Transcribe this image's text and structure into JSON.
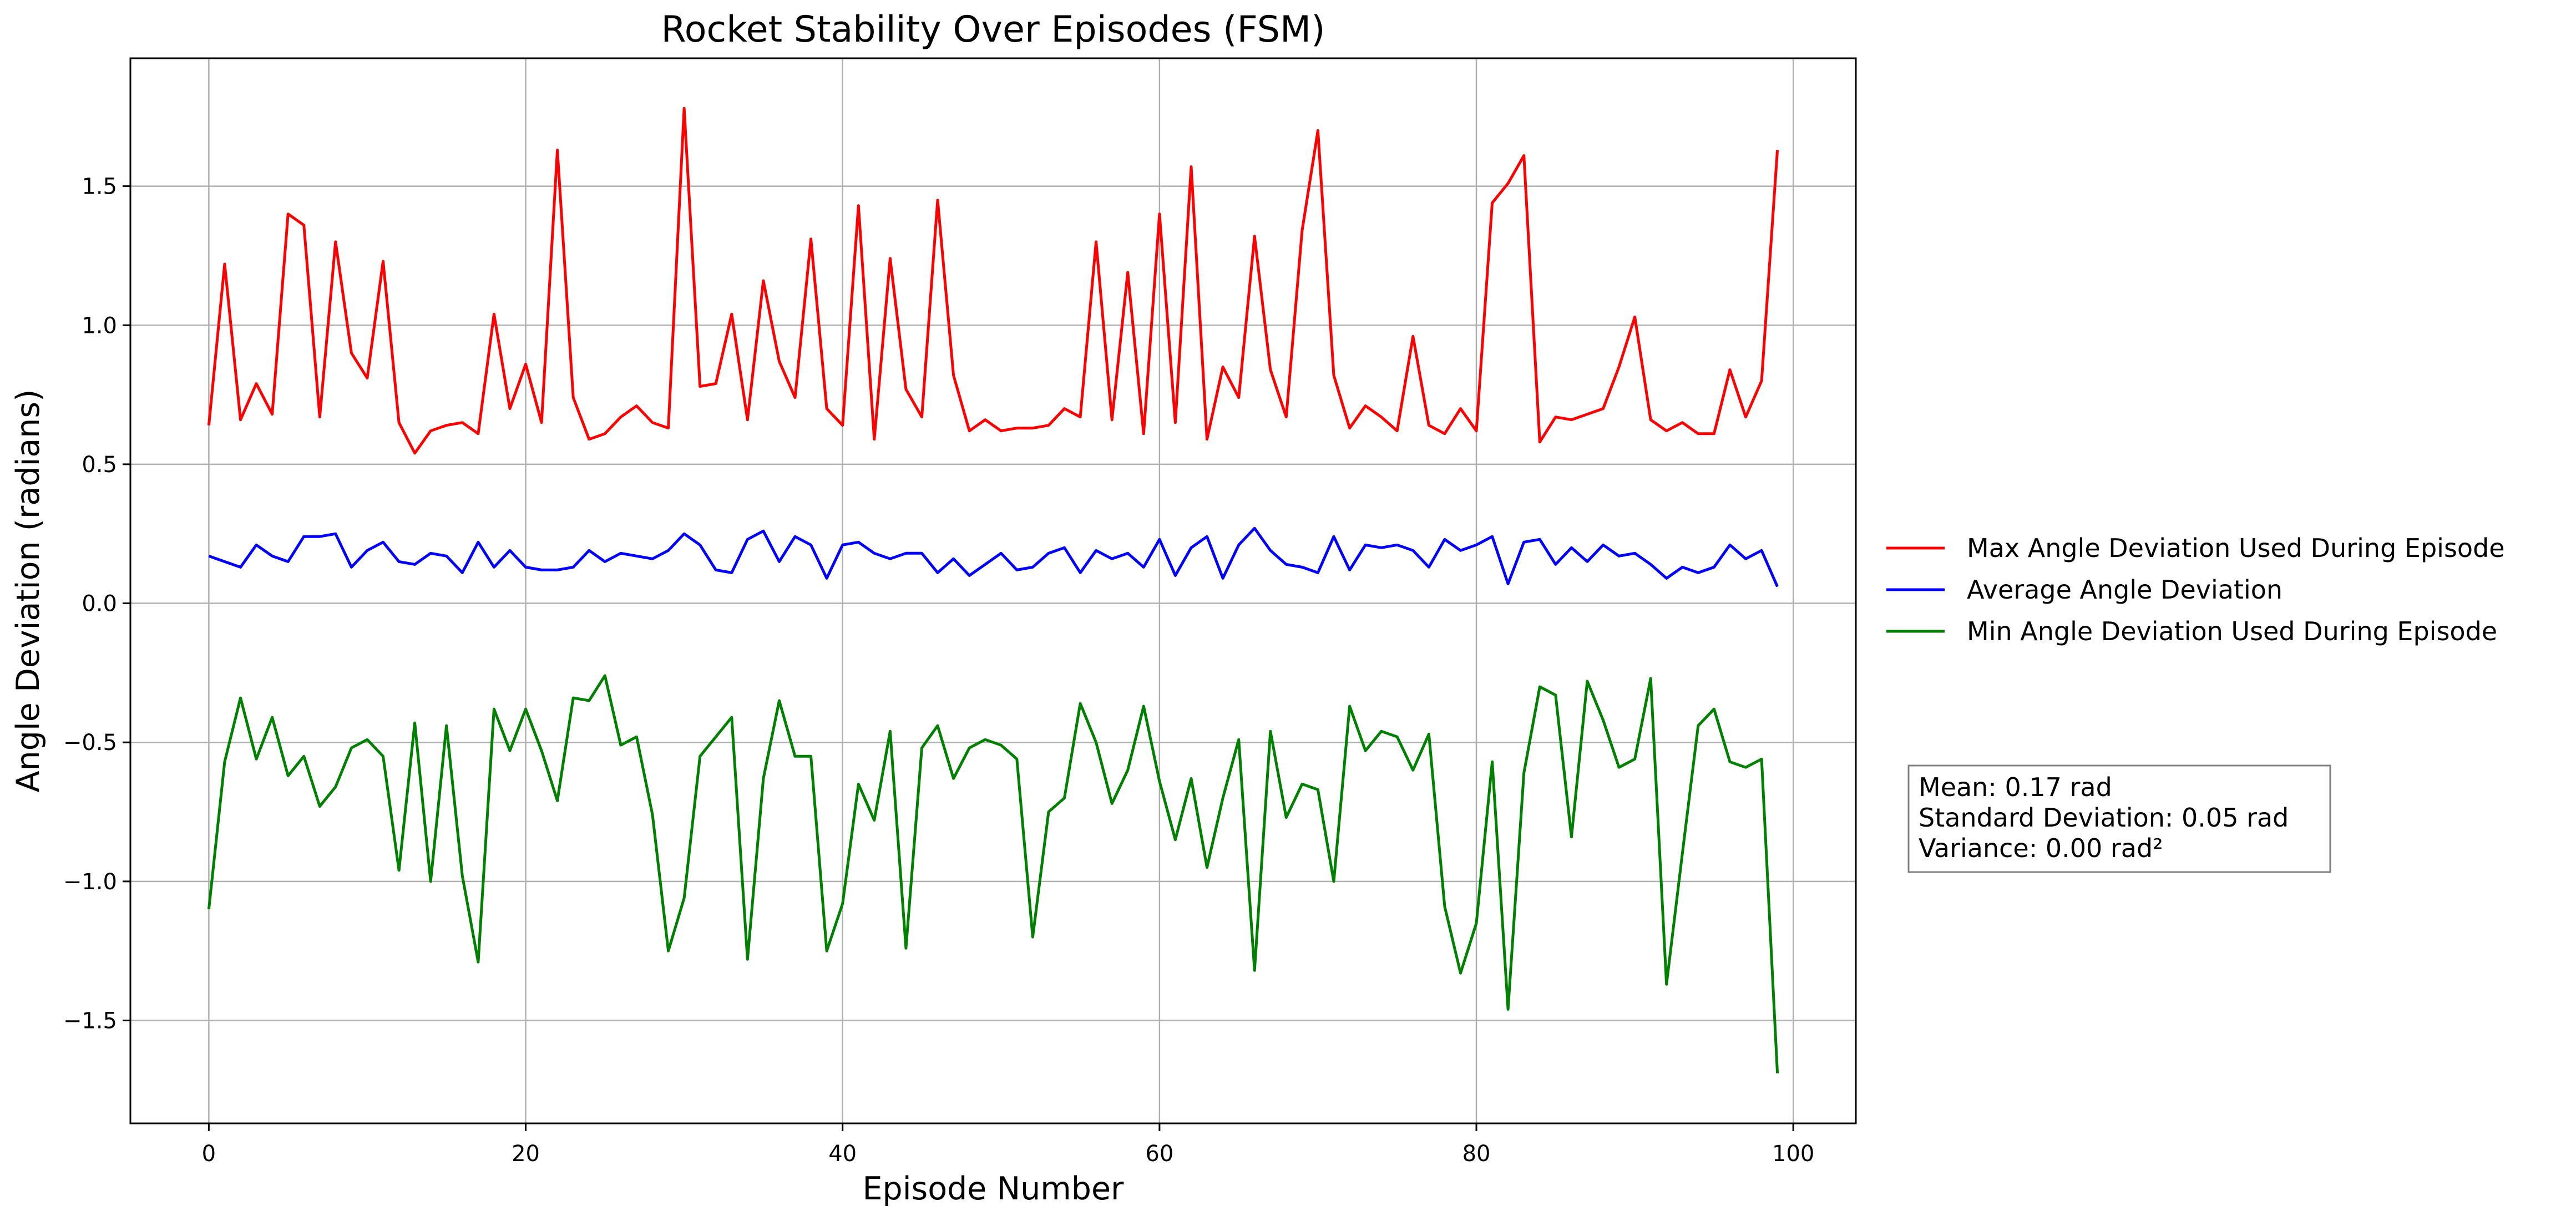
{
  "chart_data": {
    "type": "line",
    "title": "Rocket Stability Over Episodes (FSM)",
    "xlabel": "Episode Number",
    "ylabel": "Angle Deviation (radians)",
    "xlim": [
      -4.95,
      103.95
    ],
    "ylim": [
      -1.87,
      1.96
    ],
    "xticks": [
      0,
      20,
      40,
      60,
      80,
      100
    ],
    "xtick_labels": [
      "0",
      "20",
      "40",
      "60",
      "80",
      "100"
    ],
    "yticks": [
      -1.5,
      -1.0,
      -0.5,
      0.0,
      0.5,
      1.0,
      1.5
    ],
    "ytick_labels": [
      "−1.5",
      "−1.0",
      "−0.5",
      "0.0",
      "0.5",
      "1.0",
      "1.5"
    ],
    "grid": true,
    "legend_position": "outside-right",
    "x": [
      0,
      1,
      2,
      3,
      4,
      5,
      6,
      7,
      8,
      9,
      10,
      11,
      12,
      13,
      14,
      15,
      16,
      17,
      18,
      19,
      20,
      21,
      22,
      23,
      24,
      25,
      26,
      27,
      28,
      29,
      30,
      31,
      32,
      33,
      34,
      35,
      36,
      37,
      38,
      39,
      40,
      41,
      42,
      43,
      44,
      45,
      46,
      47,
      48,
      49,
      50,
      51,
      52,
      53,
      54,
      55,
      56,
      57,
      58,
      59,
      60,
      61,
      62,
      63,
      64,
      65,
      66,
      67,
      68,
      69,
      70,
      71,
      72,
      73,
      74,
      75,
      76,
      77,
      78,
      79,
      80,
      81,
      82,
      83,
      84,
      85,
      86,
      87,
      88,
      89,
      90,
      91,
      92,
      93,
      94,
      95,
      96,
      97,
      98,
      99
    ],
    "series": [
      {
        "name": "Max Angle Deviation Used During Episode",
        "color": "#ff0000",
        "values": [
          0.64,
          1.22,
          0.66,
          0.79,
          0.68,
          1.4,
          1.36,
          0.67,
          1.3,
          0.9,
          0.81,
          1.23,
          0.65,
          0.54,
          0.62,
          0.64,
          0.65,
          0.61,
          1.04,
          0.7,
          0.86,
          0.65,
          1.63,
          0.74,
          0.59,
          0.61,
          0.67,
          0.71,
          0.65,
          0.63,
          1.78,
          0.78,
          0.79,
          1.04,
          0.66,
          1.16,
          0.87,
          0.74,
          1.31,
          0.7,
          0.64,
          1.43,
          0.59,
          1.24,
          0.77,
          0.67,
          1.45,
          0.82,
          0.62,
          0.66,
          0.62,
          0.63,
          0.63,
          0.64,
          0.7,
          0.67,
          1.3,
          0.66,
          1.19,
          0.61,
          1.4,
          0.65,
          1.57,
          0.59,
          0.85,
          0.74,
          1.32,
          0.84,
          0.67,
          1.34,
          1.7,
          0.82,
          0.63,
          0.71,
          0.67,
          0.62,
          0.96,
          0.64,
          0.61,
          0.7,
          0.62,
          1.44,
          1.51,
          1.61,
          0.58,
          0.67,
          0.66,
          0.68,
          0.7,
          0.85,
          1.03,
          0.66,
          0.62,
          0.65,
          0.61,
          0.61,
          0.84,
          0.67,
          0.8,
          1.63
        ]
      },
      {
        "name": "Average Angle Deviation",
        "color": "#0000ff",
        "values": [
          0.17,
          0.15,
          0.13,
          0.21,
          0.17,
          0.15,
          0.24,
          0.24,
          0.25,
          0.13,
          0.19,
          0.22,
          0.15,
          0.14,
          0.18,
          0.17,
          0.11,
          0.22,
          0.13,
          0.19,
          0.13,
          0.12,
          0.12,
          0.13,
          0.19,
          0.15,
          0.18,
          0.17,
          0.16,
          0.19,
          0.25,
          0.21,
          0.12,
          0.11,
          0.23,
          0.26,
          0.15,
          0.24,
          0.21,
          0.09,
          0.21,
          0.22,
          0.18,
          0.16,
          0.18,
          0.18,
          0.11,
          0.16,
          0.1,
          0.14,
          0.18,
          0.12,
          0.13,
          0.18,
          0.2,
          0.11,
          0.19,
          0.16,
          0.18,
          0.13,
          0.23,
          0.1,
          0.2,
          0.24,
          0.09,
          0.21,
          0.27,
          0.19,
          0.14,
          0.13,
          0.11,
          0.24,
          0.12,
          0.21,
          0.2,
          0.21,
          0.19,
          0.13,
          0.23,
          0.19,
          0.21,
          0.24,
          0.07,
          0.22,
          0.23,
          0.14,
          0.2,
          0.15,
          0.21,
          0.17,
          0.18,
          0.14,
          0.09,
          0.13,
          0.11,
          0.13,
          0.21,
          0.16,
          0.19,
          0.06
        ]
      },
      {
        "name": "Min Angle Deviation Used During Episode",
        "color": "#008000",
        "values": [
          -1.1,
          -0.57,
          -0.34,
          -0.56,
          -0.41,
          -0.62,
          -0.55,
          -0.73,
          -0.66,
          -0.52,
          -0.49,
          -0.55,
          -0.96,
          -0.43,
          -1.0,
          -0.44,
          -0.98,
          -1.29,
          -0.38,
          -0.53,
          -0.38,
          -0.53,
          -0.71,
          -0.34,
          -0.35,
          -0.26,
          -0.51,
          -0.48,
          -0.76,
          -1.25,
          -1.06,
          -0.55,
          -0.48,
          -0.41,
          -1.28,
          -0.63,
          -0.35,
          -0.55,
          -0.55,
          -1.25,
          -1.08,
          -0.65,
          -0.78,
          -0.46,
          -1.24,
          -0.52,
          -0.44,
          -0.63,
          -0.52,
          -0.49,
          -0.51,
          -0.56,
          -1.2,
          -0.75,
          -0.7,
          -0.36,
          -0.5,
          -0.72,
          -0.6,
          -0.37,
          -0.64,
          -0.85,
          -0.63,
          -0.95,
          -0.7,
          -0.49,
          -1.32,
          -0.46,
          -0.77,
          -0.65,
          -0.67,
          -1.0,
          -0.37,
          -0.53,
          -0.46,
          -0.48,
          -0.6,
          -0.47,
          -1.09,
          -1.33,
          -1.15,
          -0.57,
          -1.46,
          -0.61,
          -0.3,
          -0.33,
          -0.84,
          -0.28,
          -0.42,
          -0.59,
          -0.56,
          -0.27,
          -1.37,
          -0.9,
          -0.44,
          -0.38,
          -0.57,
          -0.59,
          -0.56,
          -1.69
        ]
      }
    ],
    "annotation": {
      "lines": [
        "Mean: 0.17 rad",
        "Standard Deviation: 0.05 rad",
        "Variance: 0.00 rad²"
      ]
    }
  }
}
